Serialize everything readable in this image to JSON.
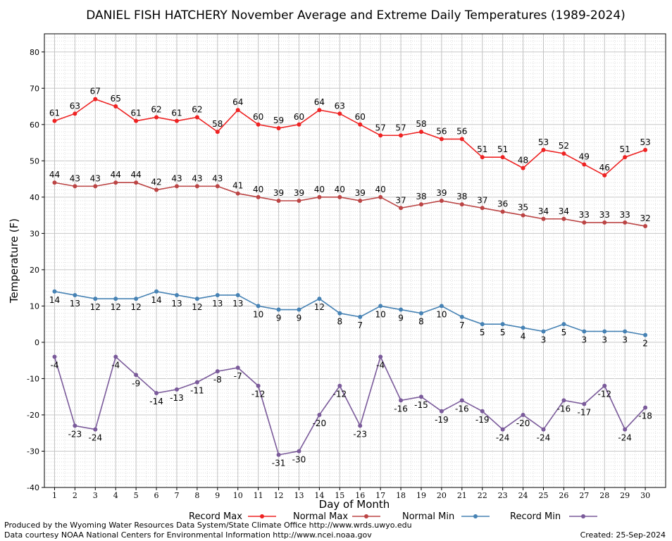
{
  "chart_data": {
    "type": "line",
    "title": "DANIEL FISH HATCHERY November Average and Extreme Daily Temperatures (1989-2024)",
    "xlabel": "Day of Month",
    "ylabel": "Temperature (F)",
    "ylim": [
      -40,
      85
    ],
    "yticks": [
      -40,
      -30,
      -20,
      -10,
      0,
      10,
      20,
      30,
      40,
      50,
      60,
      70,
      80
    ],
    "grid": true,
    "legend_position": "bottom",
    "x": [
      1,
      2,
      3,
      4,
      5,
      6,
      7,
      8,
      9,
      10,
      11,
      12,
      13,
      14,
      15,
      16,
      17,
      18,
      19,
      20,
      21,
      22,
      23,
      24,
      25,
      26,
      27,
      28,
      29,
      30
    ],
    "series": [
      {
        "name": "Record Max",
        "color": "#ee2222",
        "label_pos": "above",
        "values": [
          61,
          63,
          67,
          65,
          61,
          62,
          61,
          62,
          58,
          64,
          60,
          59,
          60,
          64,
          63,
          60,
          57,
          57,
          58,
          56,
          56,
          51,
          51,
          48,
          53,
          52,
          49,
          46,
          51,
          53
        ]
      },
      {
        "name": "Normal Max",
        "color": "#bb4444",
        "label_pos": "above",
        "values": [
          44,
          43,
          43,
          44,
          44,
          42,
          43,
          43,
          43,
          41,
          40,
          39,
          39,
          40,
          40,
          39,
          40,
          37,
          38,
          39,
          38,
          37,
          36,
          35,
          34,
          34,
          33,
          33,
          33,
          32
        ]
      },
      {
        "name": "Normal Min",
        "color": "#4682b4",
        "label_pos": "below",
        "values": [
          14,
          13,
          12,
          12,
          12,
          14,
          13,
          12,
          13,
          13,
          10,
          9,
          9,
          12,
          8,
          7,
          10,
          9,
          8,
          10,
          7,
          5,
          5,
          4,
          3,
          5,
          3,
          3,
          3,
          2
        ]
      },
      {
        "name": "Record Min",
        "color": "#7a5a9a",
        "label_pos": "below",
        "values": [
          -4,
          -23,
          -24,
          -4,
          -9,
          -14,
          -13,
          -11,
          -8,
          -7,
          -12,
          -31,
          -30,
          -20,
          -12,
          -23,
          -4,
          -16,
          -15,
          -19,
          -16,
          -19,
          -24,
          -20,
          -24,
          -16,
          -17,
          -12,
          -24,
          -18
        ]
      }
    ]
  },
  "footer": {
    "left_line1": "Produced by the Wyoming Water Resources Data System/State Climate Office http://www.wrds.uwyo.edu",
    "left_line2": "Data courtesy NOAA National Centers for Environmental Information http://www.ncei.noaa.gov",
    "created": "Created:  25-Sep-2024"
  }
}
